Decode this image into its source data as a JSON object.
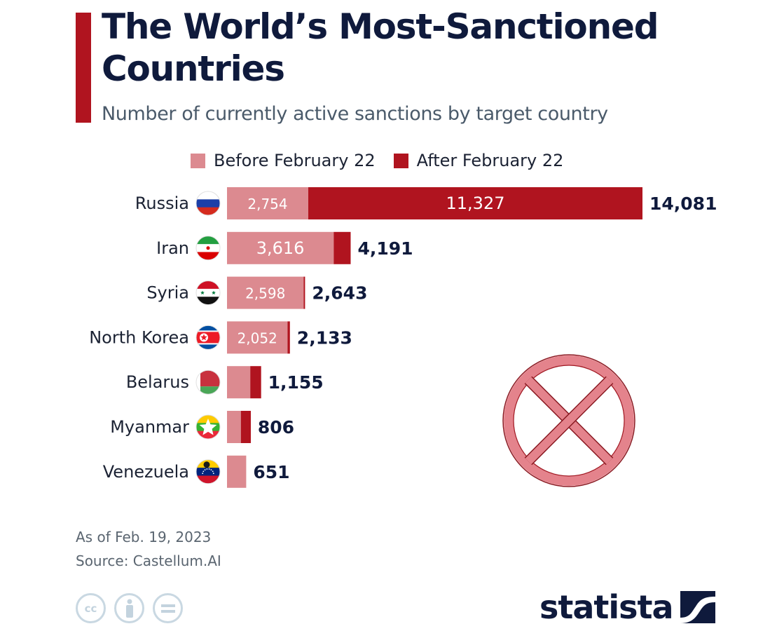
{
  "header": {
    "title": "The World’s Most-Sanctioned Countries",
    "subtitle": "Number of currently active sanctions by target country"
  },
  "colors": {
    "accent": "#b0141f",
    "before": "#dc8a90",
    "after": "#b0141f",
    "title_text": "#0f1a3c",
    "stamp": "#e4838c"
  },
  "chart_data": {
    "type": "bar",
    "orientation": "horizontal",
    "stacked": true,
    "title": "The World’s Most-Sanctioned Countries",
    "subtitle": "Number of currently active sanctions by target country",
    "xlabel": "",
    "ylabel": "",
    "xlim": [
      0,
      14081
    ],
    "grid": false,
    "legend_position": "top",
    "categories": [
      "Russia",
      "Iran",
      "Syria",
      "North Korea",
      "Belarus",
      "Myanmar",
      "Venezuela"
    ],
    "flag_icons": [
      "russia-flag-icon",
      "iran-flag-icon",
      "syria-flag-icon",
      "north-korea-flag-icon",
      "belarus-flag-icon",
      "myanmar-flag-icon",
      "venezuela-flag-icon"
    ],
    "series": [
      {
        "name": "Before February 22",
        "values": [
          2754,
          3616,
          2598,
          2052,
          788,
          470,
          651
        ],
        "labels": [
          "2,754",
          "3,616",
          "2,598",
          "2,052",
          "",
          "",
          ""
        ]
      },
      {
        "name": "After February 22",
        "values": [
          11327,
          575,
          45,
          81,
          367,
          336,
          0
        ],
        "labels": [
          "11,327",
          "",
          "",
          "",
          "",
          "",
          ""
        ]
      }
    ],
    "totals": [
      14081,
      4191,
      2643,
      2133,
      1155,
      806,
      651
    ],
    "total_labels": [
      "14,081",
      "4,191",
      "2,643",
      "2,133",
      "1,155",
      "806",
      "651"
    ]
  },
  "footer": {
    "date_note": "As of Feb. 19, 2023",
    "source": "Source: Castellum.AI",
    "license_icons": [
      "cc-icon",
      "attribution-icon",
      "no-derivatives-icon"
    ],
    "license_glyphs": [
      "cc",
      "i",
      "="
    ],
    "brand": "statista"
  },
  "stamp": {
    "icon": "red-x-circle-icon"
  }
}
